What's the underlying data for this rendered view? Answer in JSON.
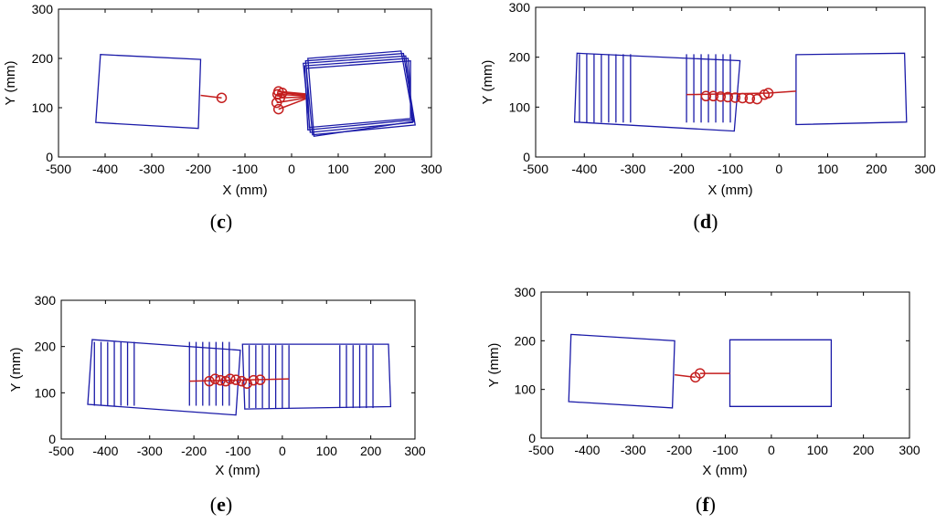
{
  "figure": {
    "panels": [
      {
        "id": "c",
        "caption_open": "(",
        "caption_letter": "c",
        "caption_close": ")"
      },
      {
        "id": "d",
        "caption_open": "(",
        "caption_letter": "d",
        "caption_close": ")"
      },
      {
        "id": "e",
        "caption_open": "(",
        "caption_letter": "e",
        "caption_close": ")"
      },
      {
        "id": "f",
        "caption_open": "(",
        "caption_letter": "f",
        "caption_close": ")"
      }
    ]
  },
  "chart_data": [
    {
      "panel": "c",
      "type": "scatter",
      "xlabel": "X (mm)",
      "ylabel": "Y (mm)",
      "xlim": [
        -500,
        300
      ],
      "ylim": [
        0,
        300
      ],
      "xticks": [
        -500,
        -400,
        -300,
        -200,
        -100,
        0,
        100,
        200,
        300
      ],
      "yticks": [
        0,
        100,
        200,
        300
      ],
      "series": [
        {
          "name": "left body",
          "color": "#1a1aa8",
          "kind": "quads",
          "quads": [
            [
              [
                -420,
                70
              ],
              [
                -410,
                208
              ],
              [
                -195,
                198
              ],
              [
                -200,
                58
              ]
            ]
          ]
        },
        {
          "name": "right body",
          "color": "#1a1aa8",
          "kind": "quads",
          "quads": [
            [
              [
                30,
                195
              ],
              [
                240,
                210
              ],
              [
                265,
                65
              ],
              [
                45,
                45
              ]
            ],
            [
              [
                25,
                190
              ],
              [
                245,
                205
              ],
              [
                260,
                70
              ],
              [
                40,
                50
              ]
            ],
            [
              [
                28,
                185
              ],
              [
                250,
                200
              ],
              [
                258,
                75
              ],
              [
                35,
                55
              ]
            ],
            [
              [
                35,
                200
              ],
              [
                235,
                215
              ],
              [
                262,
                72
              ],
              [
                48,
                42
              ]
            ],
            [
              [
                32,
                180
              ],
              [
                255,
                195
              ],
              [
                255,
                78
              ],
              [
                38,
                60
              ]
            ]
          ]
        },
        {
          "name": "tracked point",
          "color": "#c41e1e",
          "kind": "markers",
          "points": [
            [
              -150,
              120
            ],
            [
              -28,
              133
            ],
            [
              -30,
              127
            ],
            [
              -32,
              110
            ],
            [
              -28,
              97
            ],
            [
              -25,
              120
            ],
            [
              -20,
              130
            ]
          ]
        },
        {
          "name": "links",
          "color": "#c41e1e",
          "kind": "segments",
          "segments": [
            [
              [
                -195,
                125
              ],
              [
                -150,
                120
              ]
            ],
            [
              [
                -28,
                133
              ],
              [
                30,
                128
              ]
            ],
            [
              [
                -30,
                127
              ],
              [
                30,
                124
              ]
            ],
            [
              [
                -32,
                110
              ],
              [
                30,
                120
              ]
            ],
            [
              [
                -28,
                97
              ],
              [
                30,
                118
              ]
            ],
            [
              [
                -25,
                120
              ],
              [
                30,
                122
              ]
            ],
            [
              [
                -20,
                130
              ],
              [
                30,
                126
              ]
            ]
          ]
        }
      ]
    },
    {
      "panel": "d",
      "type": "scatter",
      "xlabel": "X (mm)",
      "ylabel": "Y (mm)",
      "xlim": [
        -500,
        300
      ],
      "ylim": [
        0,
        300
      ],
      "xticks": [
        -500,
        -400,
        -300,
        -200,
        -100,
        0,
        100,
        200,
        300
      ],
      "yticks": [
        0,
        100,
        200,
        300
      ],
      "series": [
        {
          "name": "left body outline",
          "color": "#1a1aa8",
          "kind": "quads",
          "quads": [
            [
              [
                -420,
                70
              ],
              [
                -415,
                208
              ],
              [
                -80,
                193
              ],
              [
                -92,
                52
              ]
            ]
          ]
        },
        {
          "name": "left body sweep",
          "color": "#1a1aa8",
          "kind": "vlines",
          "xs": [
            -410,
            -395,
            -380,
            -365,
            -350,
            -335,
            -320,
            -305,
            -190,
            -175,
            -160,
            -145,
            -130,
            -115,
            -100
          ],
          "ybottom_ends": [
            69,
            206
          ]
        },
        {
          "name": "right body",
          "color": "#1a1aa8",
          "kind": "quads",
          "quads": [
            [
              [
                35,
                205
              ],
              [
                258,
                208
              ],
              [
                262,
                70
              ],
              [
                35,
                65
              ]
            ]
          ]
        },
        {
          "name": "tracked point",
          "color": "#c41e1e",
          "kind": "markers",
          "points": [
            [
              -150,
              122
            ],
            [
              -135,
              122
            ],
            [
              -120,
              121
            ],
            [
              -105,
              120
            ],
            [
              -90,
              119
            ],
            [
              -75,
              118
            ],
            [
              -60,
              117
            ],
            [
              -45,
              116
            ],
            [
              -30,
              125
            ],
            [
              -22,
              128
            ]
          ]
        },
        {
          "name": "links",
          "color": "#c41e1e",
          "kind": "segments",
          "segments": [
            [
              [
                -190,
                125
              ],
              [
                -22,
                128
              ]
            ],
            [
              [
                -22,
                128
              ],
              [
                35,
                132
              ]
            ]
          ]
        }
      ]
    },
    {
      "panel": "e",
      "type": "scatter",
      "xlabel": "X (mm)",
      "ylabel": "Y (mm)",
      "xlim": [
        -500,
        300
      ],
      "ylim": [
        0,
        300
      ],
      "xticks": [
        -500,
        -400,
        -300,
        -200,
        -100,
        0,
        100,
        200,
        300
      ],
      "yticks": [
        0,
        100,
        200,
        300
      ],
      "series": [
        {
          "name": "left body outline",
          "color": "#1a1aa8",
          "kind": "quads",
          "quads": [
            [
              [
                -440,
                75
              ],
              [
                -430,
                215
              ],
              [
                -95,
                192
              ],
              [
                -105,
                52
              ]
            ]
          ]
        },
        {
          "name": "left body sweep",
          "color": "#1a1aa8",
          "kind": "vlines",
          "xs": [
            -425,
            -410,
            -395,
            -380,
            -365,
            -350,
            -335,
            -210,
            -195,
            -180,
            -165,
            -150,
            -135,
            -120
          ],
          "ybottom_ends": [
            72,
            210
          ]
        },
        {
          "name": "right body outline",
          "color": "#1a1aa8",
          "kind": "quads",
          "quads": [
            [
              [
                -90,
                205
              ],
              [
                240,
                205
              ],
              [
                245,
                70
              ],
              [
                -85,
                65
              ]
            ]
          ]
        },
        {
          "name": "right body sweep",
          "color": "#1a1aa8",
          "kind": "vlines",
          "xs": [
            -75,
            -60,
            -45,
            -30,
            -15,
            0,
            15,
            130,
            145,
            160,
            175,
            190,
            205
          ],
          "ybottom_ends": [
            67,
            203
          ]
        },
        {
          "name": "tracked point",
          "color": "#c41e1e",
          "kind": "markers",
          "points": [
            [
              -165,
              125
            ],
            [
              -152,
              130
            ],
            [
              -140,
              127
            ],
            [
              -128,
              125
            ],
            [
              -118,
              130
            ],
            [
              -105,
              128
            ],
            [
              -92,
              125
            ],
            [
              -80,
              120
            ],
            [
              -65,
              127
            ],
            [
              -50,
              128
            ]
          ]
        },
        {
          "name": "links",
          "color": "#c41e1e",
          "kind": "segments",
          "segments": [
            [
              [
                -210,
                125
              ],
              [
                15,
                130
              ]
            ]
          ]
        }
      ]
    },
    {
      "panel": "f",
      "type": "scatter",
      "xlabel": "X (mm)",
      "ylabel": "Y (mm)",
      "xlim": [
        -500,
        300
      ],
      "ylim": [
        0,
        300
      ],
      "xticks": [
        -500,
        -400,
        -300,
        -200,
        -100,
        0,
        100,
        200,
        300
      ],
      "yticks": [
        0,
        100,
        200,
        300
      ],
      "series": [
        {
          "name": "left body",
          "color": "#1a1aa8",
          "kind": "quads",
          "quads": [
            [
              [
                -440,
                75
              ],
              [
                -435,
                213
              ],
              [
                -210,
                200
              ],
              [
                -215,
                62
              ]
            ]
          ]
        },
        {
          "name": "right body",
          "color": "#1a1aa8",
          "kind": "quads",
          "quads": [
            [
              [
                -90,
                202
              ],
              [
                130,
                202
              ],
              [
                130,
                65
              ],
              [
                -90,
                65
              ]
            ]
          ]
        },
        {
          "name": "tracked point",
          "color": "#c41e1e",
          "kind": "markers",
          "points": [
            [
              -165,
              125
            ],
            [
              -155,
              133
            ]
          ]
        },
        {
          "name": "links",
          "color": "#c41e1e",
          "kind": "segments",
          "segments": [
            [
              [
                -210,
                130
              ],
              [
                -165,
                125
              ]
            ],
            [
              [
                -155,
                133
              ],
              [
                -90,
                133
              ]
            ]
          ]
        }
      ]
    }
  ]
}
